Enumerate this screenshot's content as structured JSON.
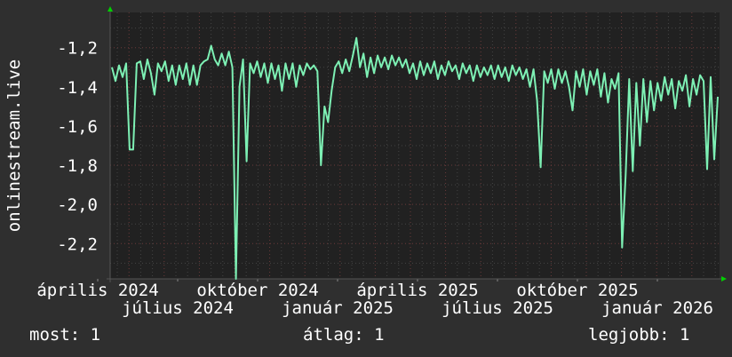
{
  "chart_data": {
    "type": "line",
    "ylabel": "onlinestream.live",
    "ylim": [
      -2.38,
      -1.02
    ],
    "yticks": [
      "-1,2",
      "-1,4",
      "-1,6",
      "-1,8",
      "-2,0",
      "-2,2"
    ],
    "ytick_values": [
      -1.2,
      -1.4,
      -1.6,
      -1.8,
      -2.0,
      -2.2
    ],
    "xticks": [
      "április 2024",
      "július 2024",
      "október 2024",
      "január 2025",
      "április 2025",
      "július 2025",
      "október 2025",
      "január 2026"
    ],
    "grid": true,
    "line_color": "#7df0b4",
    "series": [
      {
        "values": [
          -1.3,
          -1.37,
          -1.29,
          -1.35,
          -1.28,
          -1.72,
          -1.72,
          -1.28,
          -1.27,
          -1.36,
          -1.26,
          -1.33,
          -1.44,
          -1.28,
          -1.32,
          -1.27,
          -1.37,
          -1.29,
          -1.39,
          -1.29,
          -1.36,
          -1.28,
          -1.39,
          -1.29,
          -1.39,
          -1.29,
          -1.27,
          -1.26,
          -1.19,
          -1.26,
          -1.29,
          -1.23,
          -1.29,
          -1.22,
          -1.3,
          -2.38,
          -1.4,
          -1.26,
          -1.78,
          -1.28,
          -1.33,
          -1.27,
          -1.35,
          -1.28,
          -1.38,
          -1.28,
          -1.36,
          -1.29,
          -1.42,
          -1.28,
          -1.36,
          -1.28,
          -1.4,
          -1.29,
          -1.34,
          -1.28,
          -1.31,
          -1.29,
          -1.32,
          -1.8,
          -1.5,
          -1.58,
          -1.42,
          -1.3,
          -1.27,
          -1.33,
          -1.26,
          -1.32,
          -1.24,
          -1.15,
          -1.3,
          -1.23,
          -1.35,
          -1.25,
          -1.33,
          -1.24,
          -1.3,
          -1.25,
          -1.31,
          -1.24,
          -1.29,
          -1.25,
          -1.3,
          -1.26,
          -1.33,
          -1.28,
          -1.36,
          -1.27,
          -1.34,
          -1.28,
          -1.33,
          -1.27,
          -1.36,
          -1.29,
          -1.34,
          -1.27,
          -1.32,
          -1.29,
          -1.36,
          -1.28,
          -1.33,
          -1.29,
          -1.37,
          -1.29,
          -1.35,
          -1.3,
          -1.34,
          -1.29,
          -1.36,
          -1.29,
          -1.35,
          -1.3,
          -1.37,
          -1.29,
          -1.34,
          -1.3,
          -1.36,
          -1.31,
          -1.4,
          -1.31,
          -1.47,
          -1.81,
          -1.32,
          -1.38,
          -1.31,
          -1.41,
          -1.31,
          -1.38,
          -1.32,
          -1.4,
          -1.52,
          -1.32,
          -1.4,
          -1.31,
          -1.44,
          -1.32,
          -1.39,
          -1.31,
          -1.45,
          -1.33,
          -1.48,
          -1.36,
          -1.41,
          -1.33,
          -2.22,
          -1.85,
          -1.36,
          -1.83,
          -1.38,
          -1.7,
          -1.36,
          -1.58,
          -1.37,
          -1.52,
          -1.38,
          -1.47,
          -1.35,
          -1.44,
          -1.36,
          -1.51,
          -1.37,
          -1.42,
          -1.34,
          -1.5,
          -1.36,
          -1.44,
          -1.34,
          -1.37,
          -1.82,
          -1.35,
          -1.77,
          -1.45
        ]
      }
    ]
  },
  "legend": {
    "now": "most: 1",
    "avg": "átlag: 1",
    "best": "legjobb: 1"
  }
}
